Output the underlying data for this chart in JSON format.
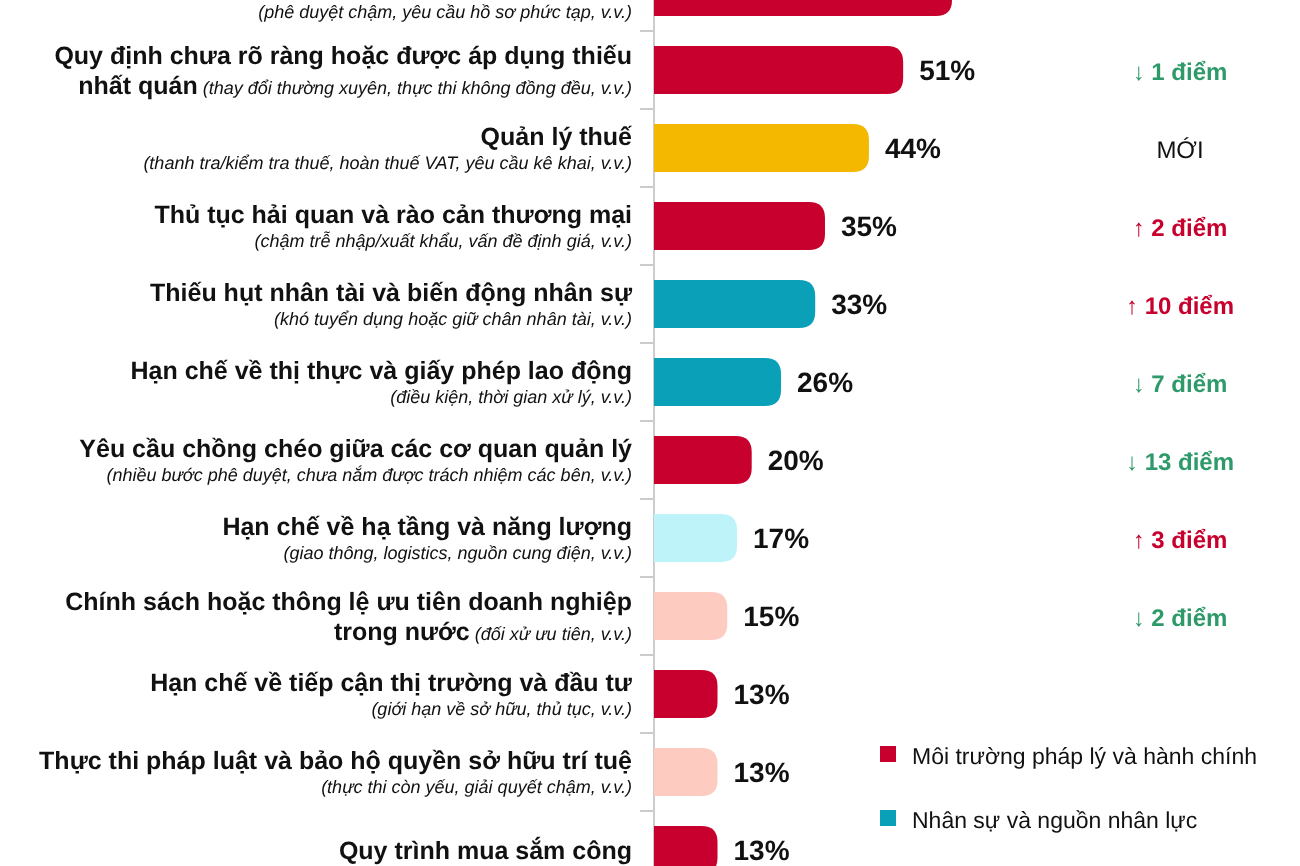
{
  "chart_data": {
    "type": "bar",
    "orientation": "horizontal",
    "stacked": true,
    "categories": [
      "(phê duyệt chậm, yêu cầu hồ sơ phức tạp, v.v.)",
      "Quy định chưa rõ ràng hoặc được áp dụng thiếu nhất quán (thay đổi thường xuyên, thực thi không đồng đều, v.v.)",
      "Quản lý thuế (thanh tra/kiểm tra thuế, hoàn thuế VAT, yêu cầu kê khai, v.v.)",
      "Thủ tục hải quan và rào cản thương mại (chậm trễ nhập/xuất khẩu, vấn đề định giá, v.v.)",
      "Thiếu hụt nhân tài và biến động nhân sự (khó tuyển dụng hoặc giữ chân nhân tài, v.v.)",
      "Hạn chế về thị thực và giấy phép lao động (điều kiện, thời gian xử lý, v.v.)",
      "Yêu cầu chồng chéo giữa các cơ quan quản lý (nhiều bước phê duyệt, chưa nắm được trách nhiệm các bên, v.v.)",
      "Hạn chế về hạ tầng và năng lượng (giao thông, logistics, nguồn cung điện, v.v.)",
      "Chính sách hoặc thông lệ ưu tiên doanh nghiệp trong nước (đối xử ưu tiên, v.v.)",
      "Hạn chế về tiếp cận thị trường và đầu tư (giới hạn về sở hữu, thủ tục, v.v.)",
      "Thực thi pháp luật và bảo hộ quyền sở hữu trí tuệ (thực thi còn yếu, giải quyết chậm, v.v.)",
      "Quy trình mua sắm công"
    ],
    "series": [
      {
        "name": "Môi trường pháp lý và hành chính",
        "color": "#c8002d",
        "values": [
          61,
          51,
          null,
          35,
          null,
          null,
          20,
          null,
          null,
          13,
          null,
          13
        ],
        "value_labels": [
          null,
          "51%",
          null,
          "35%",
          null,
          null,
          "20%",
          null,
          null,
          "13%",
          null,
          "13%"
        ]
      },
      {
        "name": "Nhân sự và nguồn nhân lực",
        "color": "#0aa0b8",
        "values": [
          null,
          null,
          null,
          null,
          33,
          26,
          null,
          null,
          null,
          null,
          null,
          null
        ],
        "value_labels": [
          null,
          null,
          null,
          null,
          "33%",
          "26%",
          null,
          null,
          null,
          null,
          null,
          null
        ]
      },
      {
        "color": "#f5b800",
        "values": [
          null,
          null,
          44,
          null,
          null,
          null,
          null,
          null,
          null,
          null,
          null,
          null
        ],
        "value_labels": [
          null,
          null,
          "44%",
          null,
          null,
          null,
          null,
          null,
          null,
          null,
          null,
          null
        ]
      },
      {
        "color": "#bff3fa",
        "values": [
          null,
          null,
          null,
          null,
          null,
          null,
          null,
          17,
          null,
          null,
          null,
          null
        ],
        "value_labels": [
          null,
          null,
          null,
          null,
          null,
          null,
          null,
          "17%",
          null,
          null,
          null,
          null
        ]
      },
      {
        "color": "#fdcbc0",
        "values": [
          null,
          null,
          null,
          null,
          null,
          null,
          null,
          null,
          15,
          null,
          13,
          null
        ],
        "value_labels": [
          null,
          null,
          null,
          null,
          null,
          null,
          null,
          null,
          "15%",
          null,
          "13%",
          null
        ]
      }
    ],
    "tick_labels": "y",
    "legend": "bottom right",
    "annotations": [
      "↓ 1 điểm",
      "MỚI",
      "↑ 2 điểm",
      "↑ 10 điểm",
      "↓ 7 điểm",
      "↓ 13 điểm",
      "↑ 3 điểm",
      "↓ 2 điểm"
    ]
  }
}
